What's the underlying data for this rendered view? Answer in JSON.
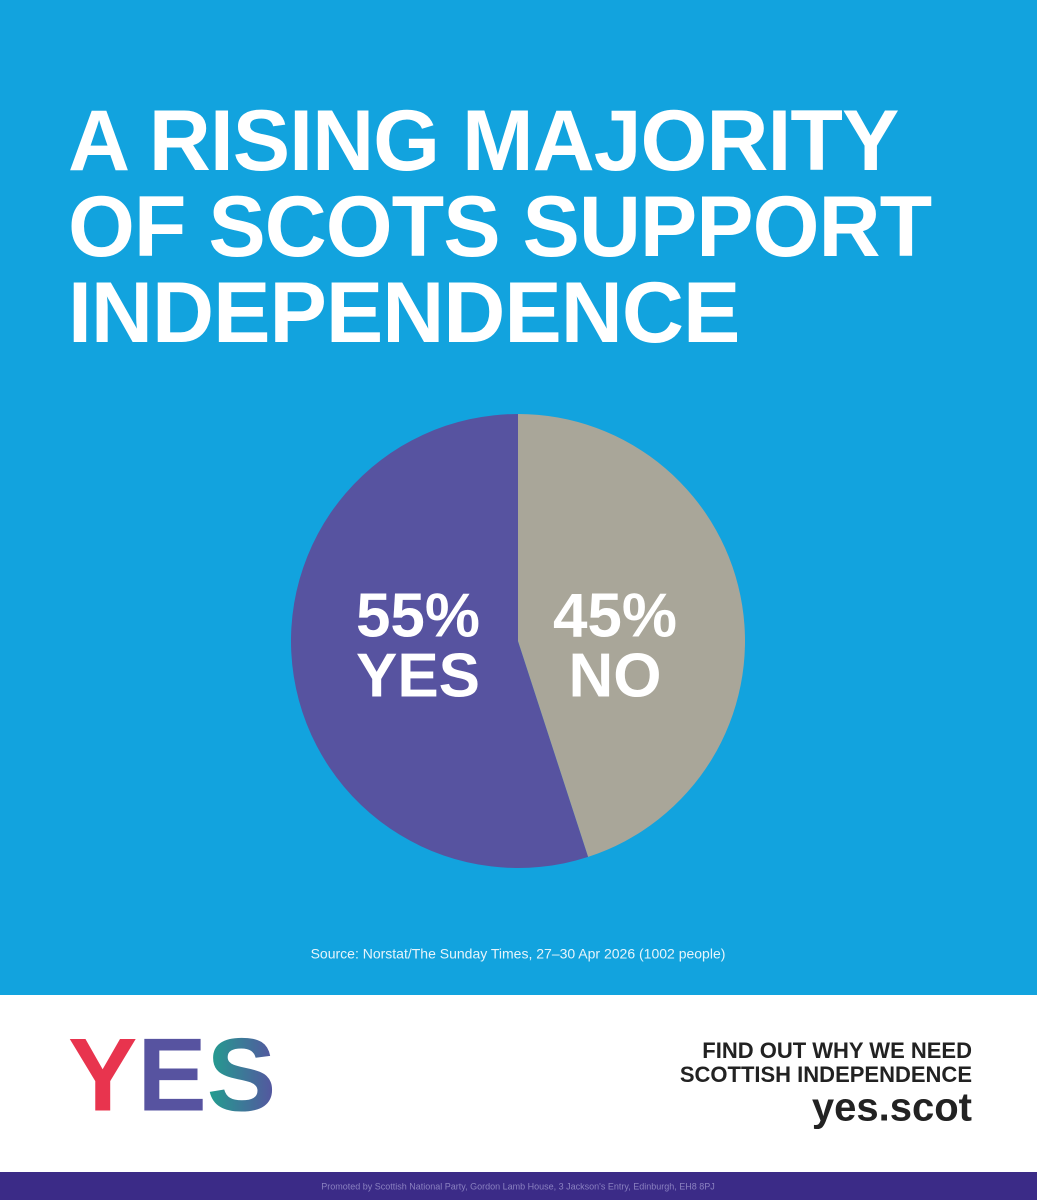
{
  "chart_data": {
    "type": "pie",
    "title": "A RISING MAJORITY OF SCOTS SUPPORT INDEPENDENCE",
    "categories": [
      "YES",
      "NO"
    ],
    "values": [
      55,
      45
    ],
    "value_labels": [
      "55%",
      "45%"
    ],
    "colors": [
      "#5753a0",
      "#a9a699"
    ],
    "source": "Source: Norstat/The Sunday Times, 27–30 Apr 2026 (1002 people)"
  },
  "footer": {
    "logo": "YES",
    "tagline": [
      "FIND OUT WHY WE NEED",
      "SCOTTISH INDEPENDENCE"
    ],
    "url": "yes.scot",
    "imprint": "Promoted by Scottish National Party, Gordon Lamb House, 3 Jackson's Entry, Edinburgh, EH8 8PJ"
  }
}
